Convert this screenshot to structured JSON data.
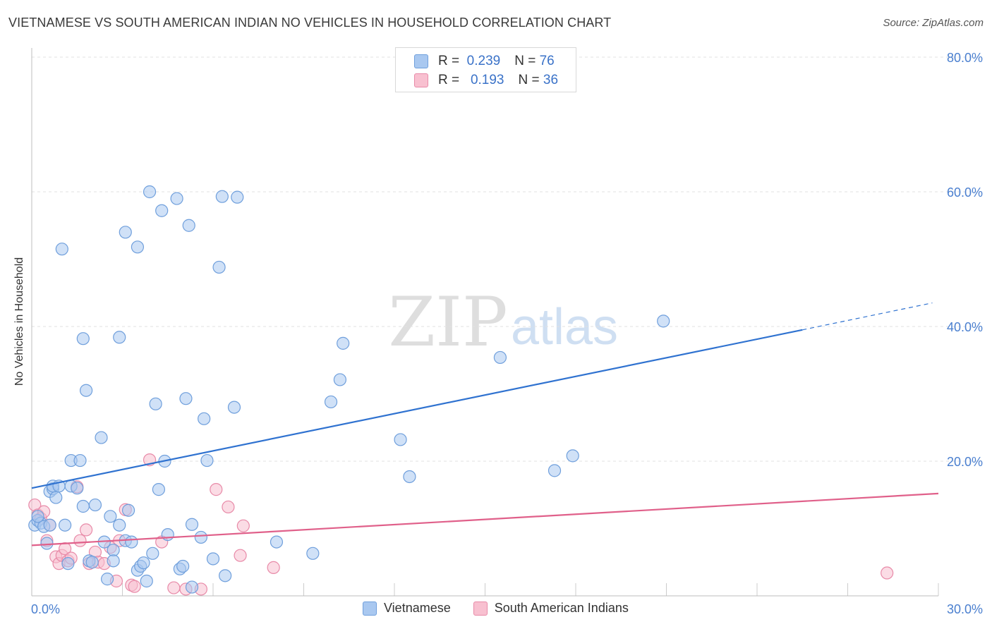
{
  "title": "VIETNAMESE VS SOUTH AMERICAN INDIAN NO VEHICLES IN HOUSEHOLD CORRELATION CHART",
  "source": "Source: ZipAtlas.com",
  "watermark": {
    "zip": "ZIP",
    "atlas": "atlas"
  },
  "legend_top": {
    "rows": [
      {
        "r_label": "R =",
        "r_value": "0.239",
        "n_label": "N =",
        "n_value": "76",
        "color": "#a9c8f0",
        "border": "#6f9fdc"
      },
      {
        "r_label": "R =",
        "r_value": "0.193",
        "n_label": "N =",
        "n_value": "36",
        "color": "#f8c0d0",
        "border": "#e88aa8"
      }
    ]
  },
  "chart_data": {
    "type": "scatter",
    "title": "VIETNAMESE VS SOUTH AMERICAN INDIAN NO VEHICLES IN HOUSEHOLD CORRELATION CHART",
    "xlabel": "",
    "ylabel": "No Vehicles in Household",
    "xlim": [
      0,
      30
    ],
    "ylim": [
      0,
      80
    ],
    "x_tick_labels": [
      "0.0%",
      "30.0%"
    ],
    "y_tick_labels": [
      "20.0%",
      "40.0%",
      "60.0%",
      "80.0%"
    ],
    "y_ticks": [
      20,
      40,
      60,
      80
    ],
    "grid": true,
    "legend_placement": "bottom",
    "series": [
      {
        "name": "Vietnamese",
        "color": "#6f9fdc",
        "fill": "#a9c8f0",
        "line_color": "#2f72d0",
        "trend": {
          "x0": 0,
          "y0": 16.0,
          "x1": 25.5,
          "y1": 39.5,
          "x_dash_end": 29.8,
          "y_dash_end": 43.5
        },
        "points": [
          [
            0.1,
            10.5
          ],
          [
            0.2,
            11.2
          ],
          [
            0.3,
            10.8
          ],
          [
            0.4,
            10.3
          ],
          [
            0.5,
            7.8
          ],
          [
            0.6,
            10.5
          ],
          [
            0.6,
            15.5
          ],
          [
            0.7,
            15.9
          ],
          [
            0.7,
            16.3
          ],
          [
            0.8,
            14.6
          ],
          [
            0.9,
            16.3
          ],
          [
            1.0,
            51.5
          ],
          [
            1.1,
            10.5
          ],
          [
            1.2,
            4.8
          ],
          [
            1.3,
            16.3
          ],
          [
            1.3,
            20.1
          ],
          [
            1.5,
            16.0
          ],
          [
            1.6,
            20.1
          ],
          [
            1.7,
            38.2
          ],
          [
            1.7,
            13.3
          ],
          [
            1.8,
            30.5
          ],
          [
            1.9,
            5.2
          ],
          [
            2.0,
            5.0
          ],
          [
            2.1,
            13.5
          ],
          [
            2.3,
            23.5
          ],
          [
            2.4,
            8.0
          ],
          [
            2.5,
            2.5
          ],
          [
            2.6,
            11.8
          ],
          [
            2.7,
            6.8
          ],
          [
            2.7,
            5.2
          ],
          [
            2.9,
            38.4
          ],
          [
            2.9,
            10.5
          ],
          [
            3.1,
            8.2
          ],
          [
            3.1,
            54.0
          ],
          [
            3.2,
            12.7
          ],
          [
            3.3,
            8.0
          ],
          [
            3.5,
            51.8
          ],
          [
            3.5,
            3.8
          ],
          [
            3.6,
            4.4
          ],
          [
            3.7,
            4.9
          ],
          [
            3.8,
            2.2
          ],
          [
            3.9,
            60.0
          ],
          [
            4.0,
            6.3
          ],
          [
            4.1,
            28.5
          ],
          [
            4.2,
            15.8
          ],
          [
            4.3,
            57.2
          ],
          [
            4.4,
            20.0
          ],
          [
            4.5,
            9.1
          ],
          [
            4.8,
            59.0
          ],
          [
            4.9,
            4.0
          ],
          [
            5.0,
            4.4
          ],
          [
            5.1,
            29.3
          ],
          [
            5.2,
            55.0
          ],
          [
            5.3,
            1.3
          ],
          [
            5.3,
            10.6
          ],
          [
            5.6,
            8.7
          ],
          [
            5.7,
            26.3
          ],
          [
            5.8,
            20.1
          ],
          [
            6.0,
            5.5
          ],
          [
            6.2,
            48.8
          ],
          [
            6.3,
            59.3
          ],
          [
            6.4,
            3.0
          ],
          [
            6.7,
            28.0
          ],
          [
            6.8,
            59.2
          ],
          [
            8.1,
            8.0
          ],
          [
            9.3,
            6.3
          ],
          [
            9.9,
            28.8
          ],
          [
            10.2,
            32.1
          ],
          [
            10.3,
            37.5
          ],
          [
            12.2,
            23.2
          ],
          [
            12.5,
            17.7
          ],
          [
            15.5,
            35.4
          ],
          [
            17.3,
            18.6
          ],
          [
            17.9,
            20.8
          ],
          [
            20.9,
            40.8
          ],
          [
            0.2,
            11.8
          ]
        ]
      },
      {
        "name": "South American Indians",
        "color": "#e88aa8",
        "fill": "#f8c0d0",
        "line_color": "#e0608a",
        "trend": {
          "x0": 0,
          "y0": 7.5,
          "x1": 30,
          "y1": 15.2
        },
        "points": [
          [
            0.1,
            13.5
          ],
          [
            0.2,
            12.0
          ],
          [
            0.3,
            11.5
          ],
          [
            0.4,
            12.5
          ],
          [
            0.5,
            8.2
          ],
          [
            0.6,
            10.5
          ],
          [
            0.8,
            5.8
          ],
          [
            0.9,
            4.8
          ],
          [
            1.0,
            6.0
          ],
          [
            1.1,
            7.0
          ],
          [
            1.2,
            5.2
          ],
          [
            1.3,
            5.6
          ],
          [
            1.5,
            16.2
          ],
          [
            1.6,
            8.2
          ],
          [
            1.8,
            9.8
          ],
          [
            1.9,
            4.8
          ],
          [
            2.1,
            6.5
          ],
          [
            2.2,
            5.0
          ],
          [
            2.4,
            4.8
          ],
          [
            2.6,
            7.2
          ],
          [
            2.8,
            2.2
          ],
          [
            2.9,
            8.2
          ],
          [
            3.1,
            12.8
          ],
          [
            3.3,
            1.6
          ],
          [
            3.4,
            1.4
          ],
          [
            3.9,
            20.2
          ],
          [
            4.3,
            8.0
          ],
          [
            4.7,
            1.2
          ],
          [
            5.1,
            1.0
          ],
          [
            5.6,
            1.0
          ],
          [
            6.1,
            15.8
          ],
          [
            6.5,
            13.2
          ],
          [
            6.9,
            6.0
          ],
          [
            7.0,
            10.4
          ],
          [
            8.0,
            4.2
          ],
          [
            28.3,
            3.4
          ]
        ]
      }
    ]
  }
}
